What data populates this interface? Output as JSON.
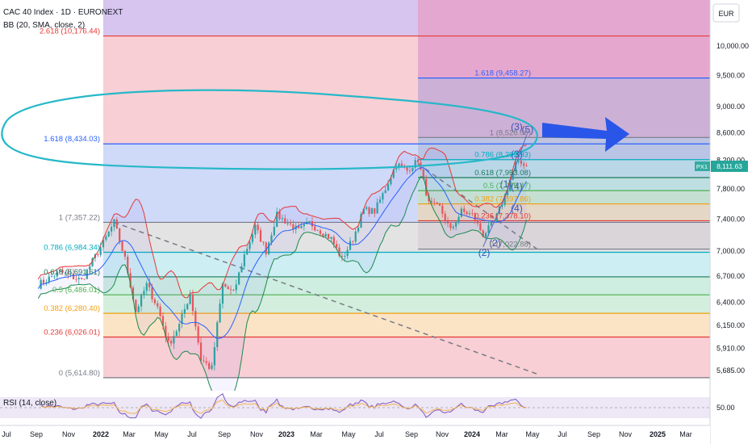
{
  "header": {
    "symbol_line": "CAC 40 Index · 1D · EURONEXT",
    "indicator_line": "BB (20, SMA, close, 2)"
  },
  "price_axis": {
    "currency": "EUR"
  },
  "rsi_panel": {
    "label": "RSI (14, close)",
    "level_label": "50.00"
  },
  "colors": {
    "candle_up": "#26a69a",
    "candle_down": "#ef5350",
    "bb_upper": "#e53935",
    "bb_basis": "#2962ff",
    "bb_lower": "#1b8a4b",
    "annotation": "#2962ff",
    "highlight_ellipse": "#26b8c8",
    "trend_dash": "#787b86"
  },
  "chart_data": {
    "type": "candlestick",
    "title": "CAC 40 Index · 1D · EURONEXT",
    "x_tick_labels": [
      "Jul",
      "Sep",
      "Nov",
      "2022",
      "Mar",
      "May",
      "Jul",
      "Sep",
      "Nov",
      "2023",
      "Mar",
      "May",
      "Jul",
      "Sep",
      "Nov",
      "2024",
      "Mar",
      "May",
      "Jul",
      "Sep",
      "Nov",
      "2025",
      "Mar"
    ],
    "y_axis": {
      "scale": "log",
      "ticks": [
        "10,000.00",
        "9,500.00",
        "9,000.00",
        "8,600.00",
        "8,200.00",
        "7,800.00",
        "7,400.00",
        "7,000.00",
        "6,700.00",
        "6,400.00",
        "6,150.00",
        "5,910.00",
        "5,685.00"
      ]
    },
    "last_price": {
      "value": 8111.63,
      "label": "8,111.63",
      "tag": "PX1"
    },
    "fib_retracement_1": {
      "x_range": [
        "2021-12",
        "2025-04"
      ],
      "levels": [
        {
          "label": "0 (5,614.80)",
          "value": 5614.8
        },
        {
          "label": "0.236 (6,026.01)",
          "value": 6026.01
        },
        {
          "label": "0.382 (6,280.40)",
          "value": 6280.4
        },
        {
          "label": "0.5 (6,486.01)",
          "value": 6486.01
        },
        {
          "label": "0.618 (6,691.61)",
          "value": 6691.61
        },
        {
          "label": "0.786 (6,984.34)",
          "value": 6984.34
        },
        {
          "label": "1 (7,357.22)",
          "value": 7357.22
        },
        {
          "label": "1.618 (8,434.03)",
          "value": 8434.03
        },
        {
          "label": "2.618 (10,176.44)",
          "value": 10176.44
        }
      ]
    },
    "fib_retracement_2": {
      "x_range": [
        "2024-05",
        "2025-04"
      ],
      "levels": [
        {
          "label": "0 (7,022.88)",
          "value": 7022.88
        },
        {
          "label": "0.236 (7,378.10)",
          "value": 7378.1
        },
        {
          "label": "0.382 (7,597.86)",
          "value": 7597.86
        },
        {
          "label": "0.5 (7,775.47)",
          "value": 7775.47
        },
        {
          "label": "0.618 (7,953.08)",
          "value": 7953.08
        },
        {
          "label": "0.786 (8,205.93)",
          "value": 8205.93
        },
        {
          "label": "1 (8,528.06)",
          "value": 8528.06
        },
        {
          "label": "1.618 (9,458.27)",
          "value": 9458.27
        }
      ]
    },
    "elliott_labels": [
      {
        "label": "(1)",
        "x": "2025-01",
        "y": 7820
      },
      {
        "label": "(2)",
        "x": "2024-12",
        "y": 7060
      },
      {
        "label": "(2)",
        "x": "2024-11",
        "y": 6940
      },
      {
        "label": "(3)",
        "x": "2025-02",
        "y": 8240
      },
      {
        "label": "(3)",
        "x": "2025-02",
        "y": 8640
      },
      {
        "label": "(4)",
        "x": "2025-02",
        "y": 7790
      },
      {
        "label": "(4)",
        "x": "2025-02",
        "y": 7500
      },
      {
        "label": "(5)",
        "x": "2025-03",
        "y": 8600
      }
    ],
    "price_path": [
      [
        "2021-06",
        6600
      ],
      [
        "2021-08",
        6750
      ],
      [
        "2021-10",
        6650
      ],
      [
        "2021-12",
        7100
      ],
      [
        "2022-01",
        7357
      ],
      [
        "2022-02",
        6900
      ],
      [
        "2022-03",
        6300
      ],
      [
        "2022-04",
        6600
      ],
      [
        "2022-05",
        6350
      ],
      [
        "2022-06",
        5950
      ],
      [
        "2022-07",
        6150
      ],
      [
        "2022-08",
        6500
      ],
      [
        "2022-09",
        5800
      ],
      [
        "2022-10",
        5700
      ],
      [
        "2022-11",
        6600
      ],
      [
        "2022-12",
        6500
      ],
      [
        "2023-01",
        6950
      ],
      [
        "2023-02",
        7300
      ],
      [
        "2023-03",
        7000
      ],
      [
        "2023-04",
        7450
      ],
      [
        "2023-05",
        7350
      ],
      [
        "2023-06",
        7250
      ],
      [
        "2023-07",
        7350
      ],
      [
        "2023-08",
        7250
      ],
      [
        "2023-09",
        7150
      ],
      [
        "2023-10",
        6900
      ],
      [
        "2023-11",
        7150
      ],
      [
        "2023-12",
        7520
      ],
      [
        "2024-01",
        7500
      ],
      [
        "2024-02",
        7800
      ],
      [
        "2024-03",
        8150
      ],
      [
        "2024-04",
        8050
      ],
      [
        "2024-05",
        8200
      ],
      [
        "2024-06",
        7600
      ],
      [
        "2024-07",
        7550
      ],
      [
        "2024-08",
        7250
      ],
      [
        "2024-09",
        7500
      ],
      [
        "2024-10",
        7450
      ],
      [
        "2024-11",
        7200
      ],
      [
        "2024-12",
        7350
      ],
      [
        "2025-01",
        7700
      ],
      [
        "2025-02",
        8150
      ],
      [
        "2025-03",
        8150
      ]
    ],
    "trendlines": [
      {
        "from": [
          "2022-01",
          7357
        ],
        "to": [
          "2025-04",
          5650
        ]
      },
      {
        "from": [
          "2024-05",
          8150
        ],
        "to": [
          "2025-04",
          7020
        ]
      }
    ],
    "annotations": [
      "highlight ellipse around the 1.618 (8,434.03) level",
      "blue arrow pointing right toward 8,528"
    ]
  }
}
